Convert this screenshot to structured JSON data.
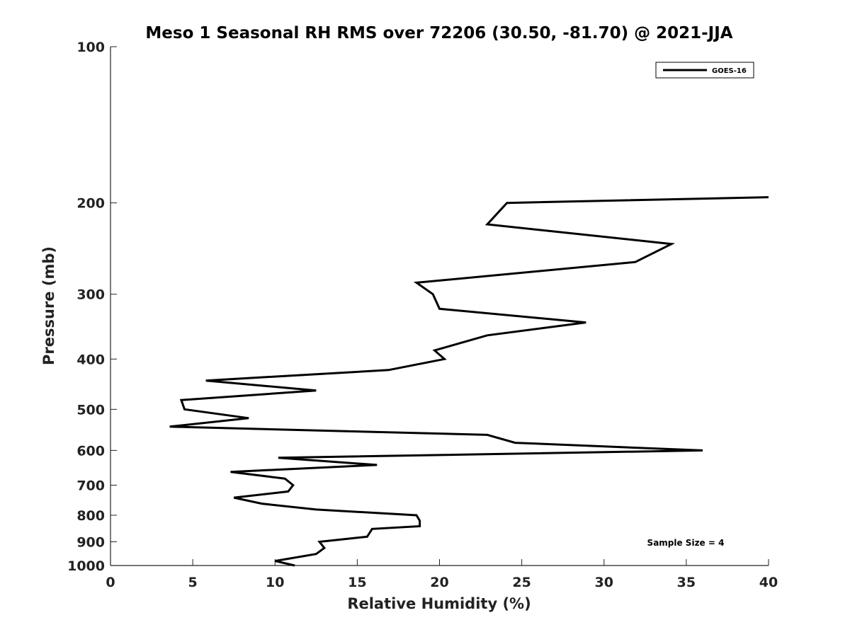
{
  "chart_data": {
    "type": "line",
    "title": "Meso 1 Seasonal RH RMS over 72206 (30.50, -81.70) @ 2021-JJA",
    "xlabel": "Relative Humidity (%)",
    "ylabel": "Pressure (mb)",
    "xlim": [
      0,
      40
    ],
    "ylim": [
      100,
      1000
    ],
    "y_scale": "log",
    "y_reversed": true,
    "grid": false,
    "legend_position": "top-right",
    "xticks": [
      "0",
      "5",
      "10",
      "15",
      "20",
      "25",
      "30",
      "35",
      "40"
    ],
    "yticks": [
      "100",
      "200",
      "300",
      "400",
      "500",
      "600",
      "700",
      "800",
      "900",
      "1000"
    ],
    "series": [
      {
        "name": "GOES-16",
        "color": "#000000",
        "x": [
          11.2,
          10.0,
          12.5,
          13.0,
          12.7,
          15.6,
          15.8,
          15.9,
          18.8,
          18.8,
          18.6,
          12.5,
          9.2,
          7.5,
          10.8,
          11.1,
          10.6,
          7.3,
          16.2,
          10.2,
          36.0,
          24.6,
          22.9,
          3.6,
          8.4,
          4.5,
          4.3,
          12.5,
          5.8,
          16.9,
          20.3,
          19.7,
          22.9,
          28.9,
          20.0,
          19.6,
          18.6,
          31.9,
          34.1,
          22.9,
          24.1,
          40.0
        ],
        "y": [
          1000,
          980,
          950,
          925,
          900,
          880,
          860,
          850,
          840,
          820,
          800,
          780,
          760,
          740,
          720,
          700,
          680,
          660,
          640,
          620,
          600,
          580,
          560,
          540,
          520,
          500,
          480,
          460,
          440,
          420,
          400,
          385,
          360,
          340,
          320,
          300,
          285,
          260,
          240,
          220,
          200,
          195
        ]
      }
    ],
    "annotations": [
      "Sample Size = 4"
    ]
  }
}
